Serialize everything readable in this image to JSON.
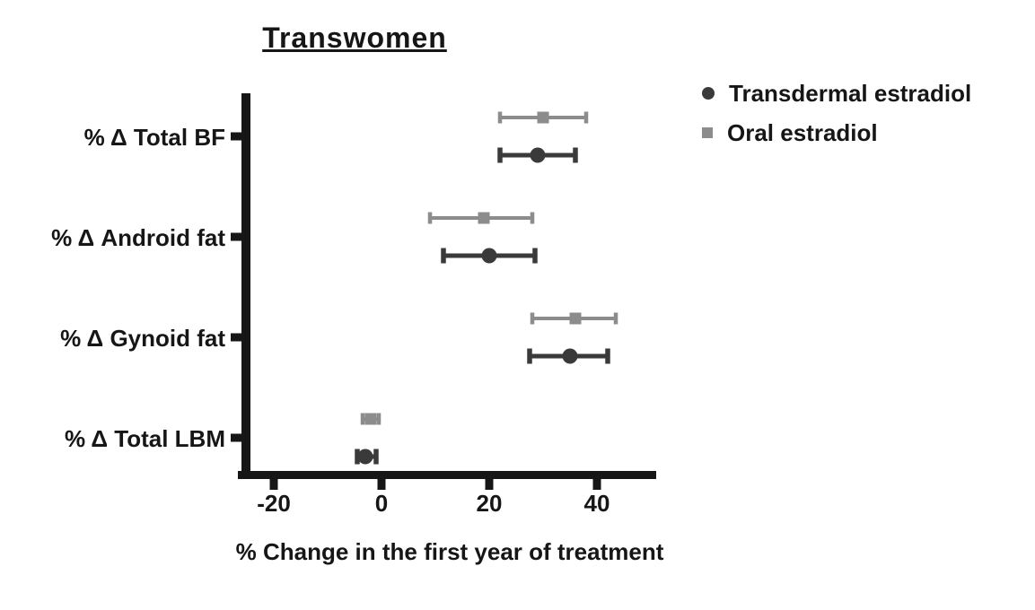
{
  "chart_data": {
    "type": "scatter",
    "subtype": "horizontal-error-bar (forest plot)",
    "title": "Transwomen",
    "xlabel": "% Change in the first year of treatment",
    "ylabel": "",
    "categories": [
      "% Δ Total BF",
      "% Δ Android fat",
      "% Δ Gynoid fat",
      "% Δ Total LBM"
    ],
    "x_ticks": [
      -20,
      0,
      20,
      40
    ],
    "xlim": [
      -27,
      51
    ],
    "grid": false,
    "legend_position": "top-right",
    "axis_color": "#161616",
    "text_color": "#161616",
    "background_color": "#ffffff",
    "series": [
      {
        "name": "Transdermal estradiol",
        "marker": "circle",
        "color": "#3a3a3a",
        "values": [
          29,
          20,
          35,
          -3
        ],
        "ci_low": [
          22,
          11.5,
          27.5,
          -4.5
        ],
        "ci_high": [
          36,
          28.5,
          42,
          -1
        ]
      },
      {
        "name": "Oral estradiol",
        "marker": "square",
        "color": "#8c8c8c",
        "values": [
          30,
          19,
          36,
          -2
        ],
        "ci_low": [
          22,
          9,
          28,
          -3.5
        ],
        "ci_high": [
          38,
          28,
          43.5,
          -0.5
        ]
      }
    ]
  }
}
